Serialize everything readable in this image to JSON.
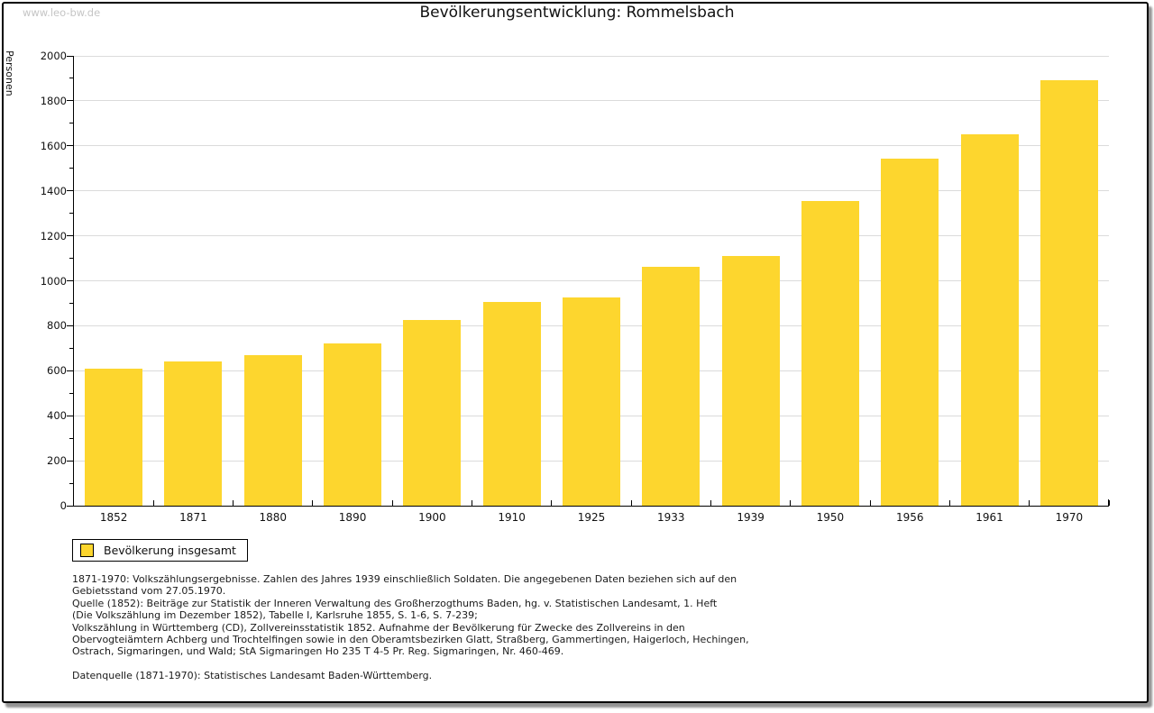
{
  "watermark": "www.leo-bw.de",
  "header": {
    "title": "Bevölkerungsentwicklung: Rommelsbach"
  },
  "chart_data": {
    "type": "bar",
    "title": "Bevölkerungsentwicklung: Rommelsbach",
    "xlabel": "",
    "ylabel": "Personen",
    "ylim": [
      0,
      2000
    ],
    "ytick_step": 200,
    "yminor_step": 100,
    "grid": true,
    "legend_position": "bottom-left",
    "categories": [
      "1852",
      "1871",
      "1880",
      "1890",
      "1900",
      "1910",
      "1925",
      "1933",
      "1939",
      "1950",
      "1956",
      "1961",
      "1970"
    ],
    "series": [
      {
        "name": "Bevölkerung insgesamt",
        "color": "#FDD62E",
        "values": [
          610,
          643,
          670,
          721,
          824,
          904,
          926,
          1061,
          1109,
          1355,
          1545,
          1650,
          1890
        ]
      }
    ]
  },
  "legend": {
    "label": "Bevölkerung insgesamt",
    "swatch_color": "#FDD62E"
  },
  "footer": {
    "lines": [
      "1871-1970: Volkszählungsergebnisse. Zahlen des Jahres 1939 einschließlich Soldaten. Die angegebenen Daten beziehen sich auf den",
      "Gebietsstand vom 27.05.1970.",
      "Quelle (1852): Beiträge zur Statistik der Inneren Verwaltung des Großherzogthums Baden, hg. v. Statistischen Landesamt, 1. Heft",
      "(Die Volkszählung im Dezember 1852), Tabelle I, Karlsruhe 1855, S. 1-6, S. 7-239;",
      "Volkszählung in Württemberg (CD), Zollvereinsstatistik 1852. Aufnahme der Bevölkerung für Zwecke des Zollvereins in den",
      "Obervogteiämtern Achberg und Trochtelfingen sowie in den Oberamtsbezirken Glatt, Straßberg, Gammertingen, Haigerloch, Hechingen,",
      "Ostrach, Sigmaringen, und Wald; StA Sigmaringen Ho 235 T 4-5 Pr. Reg. Sigmaringen, Nr. 460-469.",
      "",
      "Datenquelle (1871-1970): Statistisches Landesamt Baden-Württemberg."
    ]
  },
  "colors": {
    "bar": "#FDD62E",
    "gridline": "#dbdbdb",
    "axis": "#000000",
    "watermark": "#c5c5c5",
    "background": "#ffffff",
    "frame_shadow": "#949494"
  }
}
